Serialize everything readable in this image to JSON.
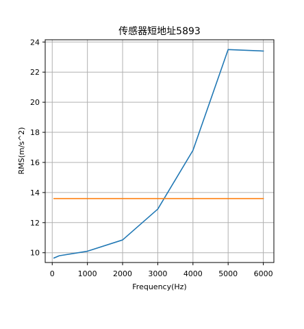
{
  "chart_data": {
    "type": "line",
    "title": "传感器短地址5893",
    "xlabel": "Frequency(Hz)",
    "ylabel": "RMS(m/s^2)",
    "xlim": [
      -200,
      6300
    ],
    "ylim": [
      9.35,
      24.15
    ],
    "xticks": [
      0,
      1000,
      2000,
      3000,
      4000,
      5000,
      6000
    ],
    "yticks": [
      10,
      12,
      14,
      16,
      18,
      20,
      22,
      24
    ],
    "grid": true,
    "series": [
      {
        "color": "#1f77b4",
        "x": [
          50,
          200,
          1000,
          2000,
          3000,
          4000,
          5000,
          6000
        ],
        "y": [
          9.65,
          9.8,
          10.1,
          10.85,
          12.9,
          16.8,
          23.5,
          23.4
        ]
      },
      {
        "color": "#ff7f0e",
        "x": [
          50,
          6000
        ],
        "y": [
          13.6,
          13.6
        ]
      }
    ]
  }
}
